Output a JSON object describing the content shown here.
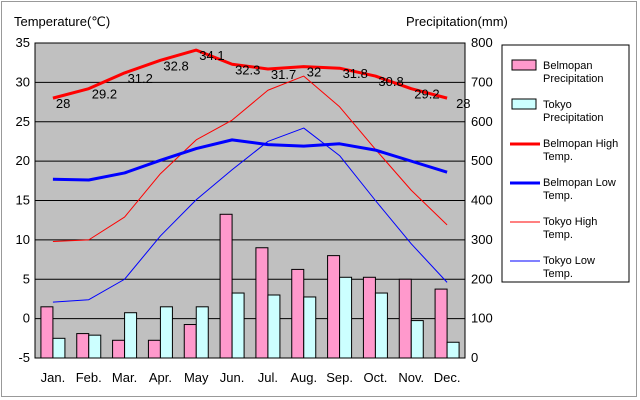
{
  "chart_data": {
    "type": "bar",
    "categories": [
      "Jan.",
      "Feb.",
      "Mar.",
      "Apr.",
      "May",
      "Jun.",
      "Jul.",
      "Aug.",
      "Sep.",
      "Oct.",
      "Nov.",
      "Dec."
    ],
    "left_axis": {
      "title": "Temperature(℃)",
      "range": [
        -5,
        35
      ],
      "ticks": [
        "-5",
        "0",
        "5",
        "10",
        "15",
        "20",
        "25",
        "30",
        "35"
      ]
    },
    "right_axis": {
      "title": "Precipitation(mm)",
      "range": [
        0,
        800
      ],
      "ticks": [
        "0",
        "100",
        "200",
        "300",
        "400",
        "500",
        "600",
        "700",
        "800"
      ]
    },
    "grid": "horizontal",
    "legend": "right",
    "series": [
      {
        "name": "Belmopan Precipitation",
        "legend_lines": [
          "Belmopan",
          "Precipitation"
        ],
        "kind": "bar",
        "axis": "right",
        "color": "#ff99cc",
        "values": [
          130,
          62,
          45,
          45,
          85,
          365,
          280,
          225,
          260,
          205,
          200,
          175
        ]
      },
      {
        "name": "Tokyo Precipitation",
        "legend_lines": [
          "Tokyo",
          "Precipitation"
        ],
        "kind": "bar",
        "axis": "right",
        "color": "#ccffff",
        "values": [
          50,
          58,
          115,
          130,
          130,
          165,
          160,
          155,
          205,
          165,
          95,
          40
        ]
      },
      {
        "name": "Belmopan High Temp.",
        "legend_lines": [
          "Belmopan High",
          "Temp."
        ],
        "kind": "line",
        "axis": "left",
        "color": "#ff0000",
        "width": 3,
        "values": [
          28,
          29.2,
          31.2,
          32.8,
          34.1,
          32.3,
          31.7,
          32,
          31.8,
          30.8,
          29.2,
          28
        ],
        "labels": [
          "28",
          "29.2",
          "31.2",
          "32.8",
          "34.1",
          "32.3",
          "31.7",
          "32",
          "31.8",
          "30.8",
          "29.2",
          "28"
        ]
      },
      {
        "name": "Belmopan Low Temp.",
        "legend_lines": [
          "Belmopan Low",
          "Temp."
        ],
        "kind": "line",
        "axis": "left",
        "color": "#0000ff",
        "width": 3,
        "values": [
          17.7,
          17.6,
          18.5,
          20.1,
          21.6,
          22.7,
          22.1,
          21.9,
          22.2,
          21.4,
          20,
          18.6
        ]
      },
      {
        "name": "Tokyo High Temp.",
        "legend_lines": [
          "Tokyo High",
          "Temp."
        ],
        "kind": "line",
        "axis": "left",
        "color": "#ff0000",
        "width": 1,
        "values": [
          9.8,
          10,
          12.9,
          18.4,
          22.7,
          25.2,
          29,
          30.8,
          26.9,
          21.5,
          16.3,
          11.9
        ]
      },
      {
        "name": "Tokyo Low Temp.",
        "legend_lines": [
          "Tokyo Low",
          "Temp."
        ],
        "kind": "line",
        "axis": "left",
        "color": "#0000ff",
        "width": 1,
        "values": [
          2.1,
          2.4,
          5,
          10.5,
          15.1,
          18.9,
          22.5,
          24.2,
          20.7,
          15,
          9.5,
          4.6
        ]
      }
    ]
  }
}
